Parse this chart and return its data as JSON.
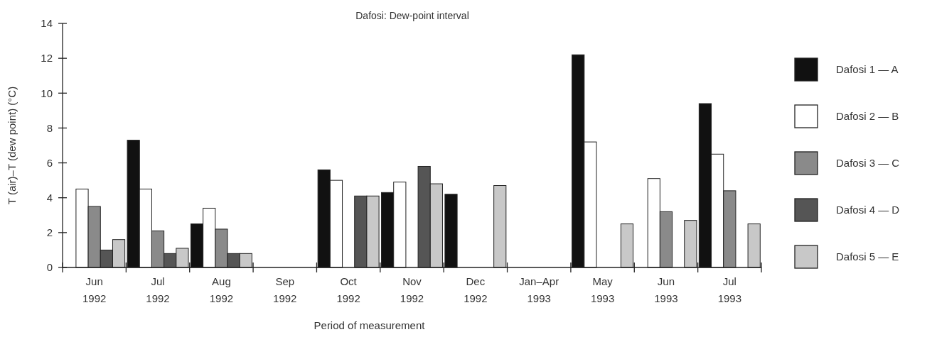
{
  "chart_data": {
    "type": "bar",
    "title": "Dafosi: Dew-point interval",
    "xlabel": "Period of measurement",
    "ylabel": "T (air)–T (dew point)  (°C)",
    "categories": [
      "Jun\n1992",
      "Jul\n1992",
      "Aug\n1992",
      "Sep\n1992",
      "Oct\n1992",
      "Nov\n1992",
      "Dec\n1992",
      "Jan–Apr\n1993",
      "May\n1993",
      "Jun\n1993",
      "Jul\n1993"
    ],
    "series": [
      {
        "name": "Dafosi 1 — A",
        "color": "#111111",
        "values": [
          null,
          7.3,
          2.5,
          null,
          5.6,
          4.3,
          4.2,
          null,
          12.2,
          null,
          9.4
        ]
      },
      {
        "name": "Dafosi 2 — B",
        "color": "#ffffff",
        "values": [
          4.5,
          4.5,
          3.4,
          null,
          5.0,
          4.9,
          null,
          null,
          7.2,
          5.1,
          6.5
        ]
      },
      {
        "name": "Dafosi 3 — C",
        "color": "#8a8a8a",
        "values": [
          3.5,
          2.1,
          2.2,
          null,
          null,
          null,
          null,
          null,
          null,
          3.2,
          4.4
        ]
      },
      {
        "name": "Dafosi 4 — D",
        "color": "#555555",
        "values": [
          1.0,
          0.8,
          0.8,
          null,
          4.1,
          5.8,
          null,
          null,
          null,
          null,
          null
        ]
      },
      {
        "name": "Dafosi 5 — E",
        "color": "#c8c8c8",
        "values": [
          1.6,
          1.1,
          0.8,
          null,
          4.1,
          4.8,
          4.7,
          null,
          2.5,
          2.7,
          2.5
        ]
      }
    ],
    "ylim": [
      0,
      14
    ],
    "yticks": [
      0,
      2,
      4,
      6,
      8,
      10,
      12,
      14
    ],
    "grid": false,
    "legend": "right"
  }
}
